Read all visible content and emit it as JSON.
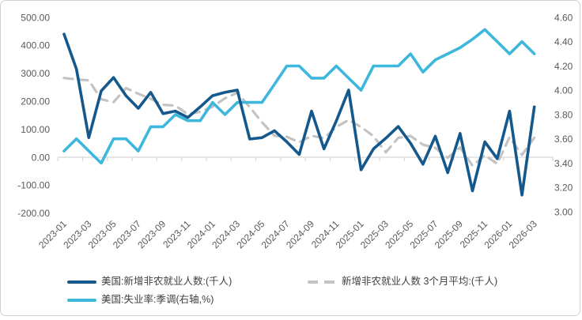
{
  "chart_data": {
    "type": "line",
    "title": "",
    "months": [
      "2023-01",
      "2023-02",
      "2023-03",
      "2023-04",
      "2023-05",
      "2023-06",
      "2023-07",
      "2023-08",
      "2023-09",
      "2023-10",
      "2023-11",
      "2023-12",
      "2024-01",
      "2024-02",
      "2024-03",
      "2024-04",
      "2024-05",
      "2024-06",
      "2024-07",
      "2024-08",
      "2024-09",
      "2024-10",
      "2024-11",
      "2024-12",
      "2025-01",
      "2025-02",
      "2025-03",
      "2025-04",
      "2025-05",
      "2025-06",
      "2025-07",
      "2025-08",
      "2025-09",
      "2025-10",
      "2025-11",
      "2025-12",
      "2026-01",
      "2026-02",
      "2026-03"
    ],
    "x_tick_labels": [
      "2023-01",
      "2023-03",
      "2023-05",
      "2023-07",
      "2023-09",
      "2023-11",
      "2024-01",
      "2024-03",
      "2024-05",
      "2024-07",
      "2024-09",
      "2024-11",
      "2025-01",
      "2025-03",
      "2025-05",
      "2025-07",
      "2025-09",
      "2025-11",
      "2026-01",
      "2026-03"
    ],
    "series": [
      {
        "name": "美国:新增非农就业人数:(千人)",
        "axis": "left",
        "style": "solid",
        "color": "#15588C",
        "values": [
          440,
          315,
          70,
          237,
          285,
          220,
          175,
          232,
          156,
          165,
          142,
          180,
          220,
          232,
          240,
          65,
          70,
          95,
          55,
          10,
          165,
          30,
          130,
          240,
          -45,
          30,
          68,
          110,
          50,
          -25,
          75,
          -55,
          85,
          -120,
          55,
          -5,
          165,
          -135,
          180
        ]
      },
      {
        "name": "新增非农就业人数 3个月平均:(千人)",
        "axis": "left",
        "style": "dashed",
        "color": "#C3C3C3",
        "values": [
          283.3,
          278.3,
          275.0,
          207.3,
          197.3,
          247.3,
          226.7,
          209.0,
          187.7,
          184.3,
          154.3,
          162.3,
          180.7,
          210.7,
          230.7,
          179.0,
          125.0,
          76.7,
          73.3,
          53.3,
          76.7,
          68.3,
          108.3,
          133.3,
          108.3,
          75.0,
          17.7,
          69.3,
          76.0,
          45.0,
          33.3,
          -1.7,
          35.0,
          -30.0,
          6.7,
          -23.3,
          71.7,
          8.3,
          70.0
        ]
      },
      {
        "name": "美国:失业率:季调(右轴,%)",
        "axis": "right",
        "style": "solid",
        "color": "#3DB7DB",
        "values": [
          3.5,
          3.6,
          3.5,
          3.4,
          3.6,
          3.6,
          3.5,
          3.7,
          3.7,
          3.8,
          3.75,
          3.75,
          3.9,
          3.8,
          3.9,
          3.9,
          3.9,
          4.05,
          4.2,
          4.2,
          4.1,
          4.1,
          4.2,
          4.1,
          4.0,
          4.2,
          4.2,
          4.2,
          4.3,
          4.15,
          4.25,
          4.3,
          4.35,
          4.42,
          4.5,
          4.4,
          4.3,
          4.4,
          4.3
        ]
      }
    ],
    "left_axis": {
      "min": -200,
      "max": 500,
      "step": 100,
      "tick_labels": [
        "500.00",
        "400.00",
        "300.00",
        "200.00",
        "100.00",
        "0.00",
        "-100.00",
        "-200.00"
      ]
    },
    "right_axis": {
      "min": 3.0,
      "max": 4.6,
      "step": 0.2,
      "tick_labels": [
        "4.60",
        "4.40",
        "4.20",
        "4.00",
        "3.80",
        "3.60",
        "3.40",
        "3.20",
        "3.00"
      ]
    },
    "grid": "zero-line-only",
    "legend_position": "bottom",
    "colors": {
      "axis_text": "#595959",
      "axis_line": "#d6d6d6",
      "background": "#ffffff"
    }
  }
}
